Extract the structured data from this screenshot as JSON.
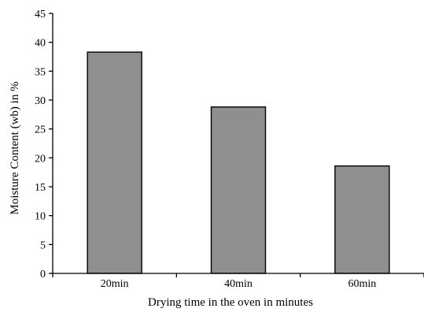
{
  "chart_data": {
    "type": "bar",
    "title": "",
    "xlabel": "Drying time in the oven in minutes",
    "ylabel": "Moisture Content (wb) in %",
    "categories": [
      "20min",
      "40min",
      "60min"
    ],
    "values": [
      38.3,
      28.8,
      18.6
    ],
    "ylim": [
      0,
      45
    ],
    "yticks": [
      "0",
      "5",
      "10",
      "15",
      "20",
      "25",
      "30",
      "35",
      "40",
      "45"
    ],
    "grid": false,
    "legend": "none",
    "colors": {
      "bar": "#8f8f8f",
      "axis": "#000000"
    }
  }
}
